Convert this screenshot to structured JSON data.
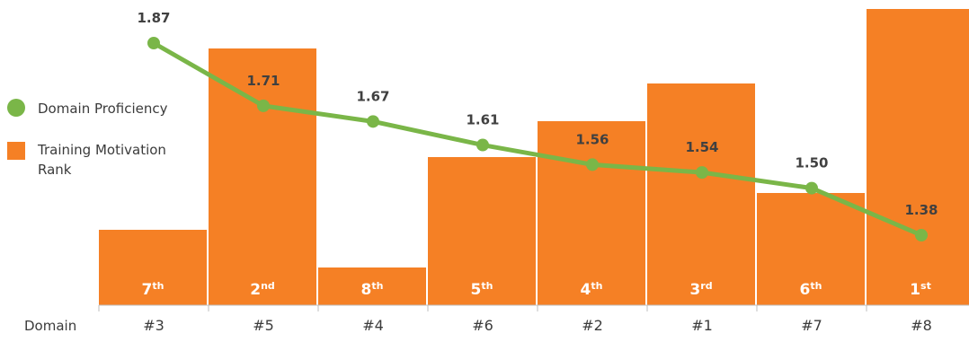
{
  "legend": {
    "proficiency_label": "Domain Proficiency",
    "rank_label": "Training Motivation Rank"
  },
  "x_axis_label": "Domain",
  "chart_data": {
    "type": "bar",
    "categories": [
      "#3",
      "#5",
      "#4",
      "#6",
      "#2",
      "#1",
      "#7",
      "#8"
    ],
    "series": [
      {
        "name": "Training Motivation Rank",
        "type": "bar",
        "values": [
          7,
          2,
          8,
          5,
          4,
          3,
          6,
          1
        ],
        "labels": [
          "7th",
          "2nd",
          "8th",
          "5th",
          "4th",
          "3rd",
          "6th",
          "1st"
        ]
      },
      {
        "name": "Domain Proficiency",
        "type": "line",
        "values": [
          1.87,
          1.71,
          1.67,
          1.61,
          1.56,
          1.54,
          1.5,
          1.38
        ],
        "labels": [
          "1.87",
          "1.71",
          "1.67",
          "1.61",
          "1.56",
          "1.54",
          "1.50",
          "1.38"
        ]
      }
    ],
    "xlabel": "Domain",
    "colors": {
      "bar": "#f58025",
      "line": "#7ab648",
      "value_label": "#404040",
      "axis": "#bfbfbf"
    },
    "grid": false,
    "legend_position": "left"
  }
}
